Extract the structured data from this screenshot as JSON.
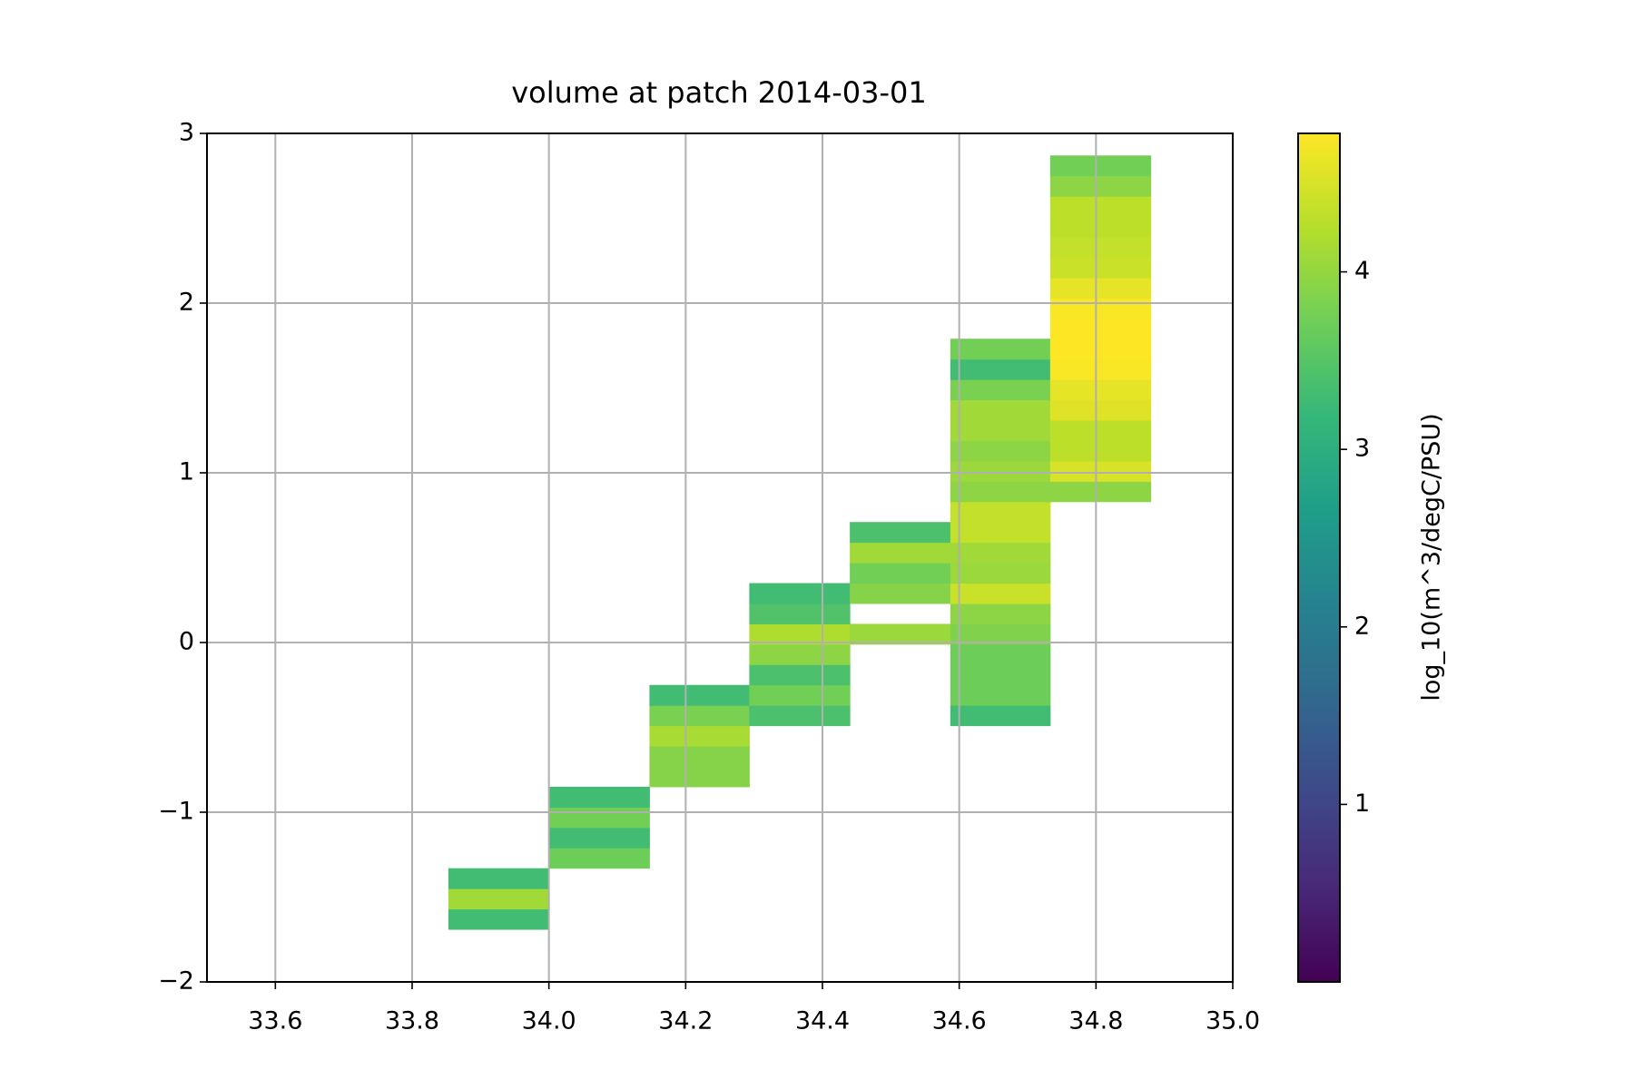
{
  "chart_data": {
    "type": "hist2d",
    "title": "volume at patch 2014-03-01",
    "colormap": "viridis",
    "x_bins": [
      33.853,
      34.0,
      34.147,
      34.293,
      34.44,
      34.587,
      34.733,
      34.88
    ],
    "y_bins": [
      -1.69,
      -1.57,
      -1.45,
      -1.33,
      -1.21,
      -1.09,
      -0.97,
      -0.85,
      -0.73,
      -0.61,
      -0.49,
      -0.37,
      -0.25,
      -0.13,
      -0.01,
      0.11,
      0.23,
      0.35,
      0.47,
      0.59,
      0.71,
      0.83,
      0.95,
      1.07,
      1.19,
      1.31,
      1.43,
      1.55,
      1.67,
      1.79,
      1.91,
      2.03,
      2.15,
      2.27,
      2.39,
      2.51,
      2.63,
      2.75,
      2.87
    ],
    "values": [
      [
        3.3,
        null,
        null,
        null,
        null,
        null,
        null
      ],
      [
        4.1,
        null,
        null,
        null,
        null,
        null,
        null
      ],
      [
        3.3,
        null,
        null,
        null,
        null,
        null,
        null
      ],
      [
        null,
        3.7,
        null,
        null,
        null,
        null,
        null
      ],
      [
        null,
        3.3,
        null,
        null,
        null,
        null,
        null
      ],
      [
        null,
        3.75,
        null,
        null,
        null,
        null,
        null
      ],
      [
        null,
        3.3,
        null,
        null,
        null,
        null,
        null
      ],
      [
        null,
        null,
        3.9,
        null,
        null,
        null,
        null
      ],
      [
        null,
        null,
        3.9,
        null,
        null,
        null,
        null
      ],
      [
        null,
        null,
        4.15,
        null,
        null,
        null,
        null
      ],
      [
        null,
        null,
        3.8,
        3.4,
        null,
        3.3,
        null
      ],
      [
        null,
        null,
        3.3,
        3.75,
        null,
        3.7,
        null
      ],
      [
        null,
        null,
        null,
        3.4,
        null,
        3.7,
        null
      ],
      [
        null,
        null,
        null,
        3.95,
        null,
        3.7,
        null
      ],
      [
        null,
        null,
        null,
        4.2,
        4.05,
        3.85,
        null
      ],
      [
        null,
        null,
        null,
        3.45,
        null,
        3.95,
        null
      ],
      [
        null,
        null,
        null,
        3.3,
        3.9,
        4.4,
        null
      ],
      [
        null,
        null,
        null,
        null,
        3.75,
        4.05,
        null
      ],
      [
        null,
        null,
        null,
        null,
        4.1,
        4.1,
        null
      ],
      [
        null,
        null,
        null,
        null,
        3.4,
        4.35,
        null
      ],
      [
        null,
        null,
        null,
        null,
        null,
        4.35,
        null
      ],
      [
        null,
        null,
        null,
        null,
        null,
        3.95,
        3.95
      ],
      [
        null,
        null,
        null,
        null,
        null,
        4.05,
        4.5
      ],
      [
        null,
        null,
        null,
        null,
        null,
        3.95,
        4.3
      ],
      [
        null,
        null,
        null,
        null,
        null,
        4.1,
        4.3
      ],
      [
        null,
        null,
        null,
        null,
        null,
        4.1,
        4.55
      ],
      [
        null,
        null,
        null,
        null,
        null,
        3.8,
        4.6
      ],
      [
        null,
        null,
        null,
        null,
        null,
        3.3,
        4.75
      ],
      [
        null,
        null,
        null,
        null,
        null,
        3.75,
        4.78
      ],
      [
        null,
        null,
        null,
        null,
        null,
        null,
        4.78
      ],
      [
        null,
        null,
        null,
        null,
        null,
        null,
        4.75
      ],
      [
        null,
        null,
        null,
        null,
        null,
        null,
        4.6
      ],
      [
        null,
        null,
        null,
        null,
        null,
        null,
        4.4
      ],
      [
        null,
        null,
        null,
        null,
        null,
        null,
        4.35
      ],
      [
        null,
        null,
        null,
        null,
        null,
        null,
        4.3
      ],
      [
        null,
        null,
        null,
        null,
        null,
        null,
        4.3
      ],
      [
        null,
        null,
        null,
        null,
        null,
        null,
        3.95
      ],
      [
        null,
        null,
        null,
        null,
        null,
        null,
        3.75
      ]
    ],
    "xlim": [
      33.5,
      35.0
    ],
    "xticks": [
      33.6,
      33.8,
      {
        "value": 34,
        "label": "34.0"
      },
      34.2,
      34.4,
      34.6,
      34.8,
      {
        "value": 35,
        "label": "35.0"
      }
    ],
    "ylim": [
      -2,
      3
    ],
    "yticks": [
      {
        "value": -2,
        "label": "−2"
      },
      {
        "value": -1,
        "label": "−1"
      },
      0,
      1,
      2,
      3
    ],
    "grid": true,
    "colorbar": {
      "label": "log_10(m^3/degC/PSU)",
      "clim": [
        0,
        4.78
      ],
      "ticks": [
        1,
        2,
        3,
        4
      ]
    }
  }
}
